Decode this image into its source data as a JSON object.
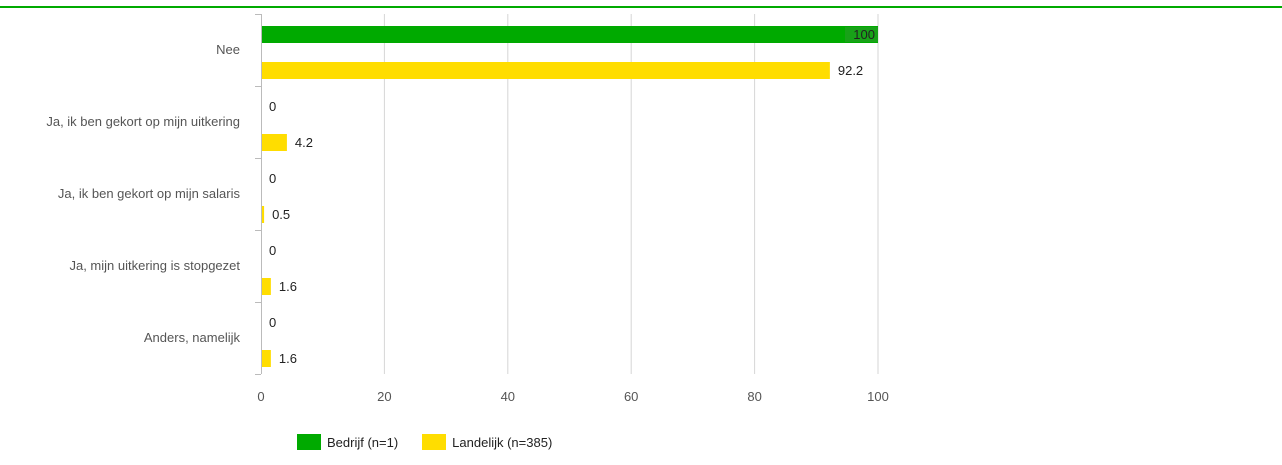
{
  "colors": {
    "accent": "#00aa00",
    "series_1": "#00aa00",
    "series_2": "#ffdd00",
    "grid": "#d6d6d6",
    "label_text": "#555555",
    "value_text": "#222222"
  },
  "chart_data": {
    "type": "bar",
    "orientation": "horizontal",
    "title": "",
    "xlabel": "",
    "ylabel": "",
    "categories": [
      "Nee",
      "Ja, ik ben gekort op mijn uitkering",
      "Ja, ik ben gekort op mijn salaris",
      "Ja, mijn uitkering is stopgezet",
      "Anders, namelijk"
    ],
    "series": [
      {
        "name": "Bedrijf (n=1)",
        "values": [
          100,
          0,
          0,
          0,
          0
        ]
      },
      {
        "name": "Landelijk (n=385)",
        "values": [
          92.2,
          4.2,
          0.5,
          1.6,
          1.6
        ]
      }
    ],
    "xlim": [
      0,
      100
    ],
    "xticks": [
      0,
      20,
      40,
      60,
      80,
      100
    ],
    "grid": true,
    "legend_position": "bottom-left"
  }
}
